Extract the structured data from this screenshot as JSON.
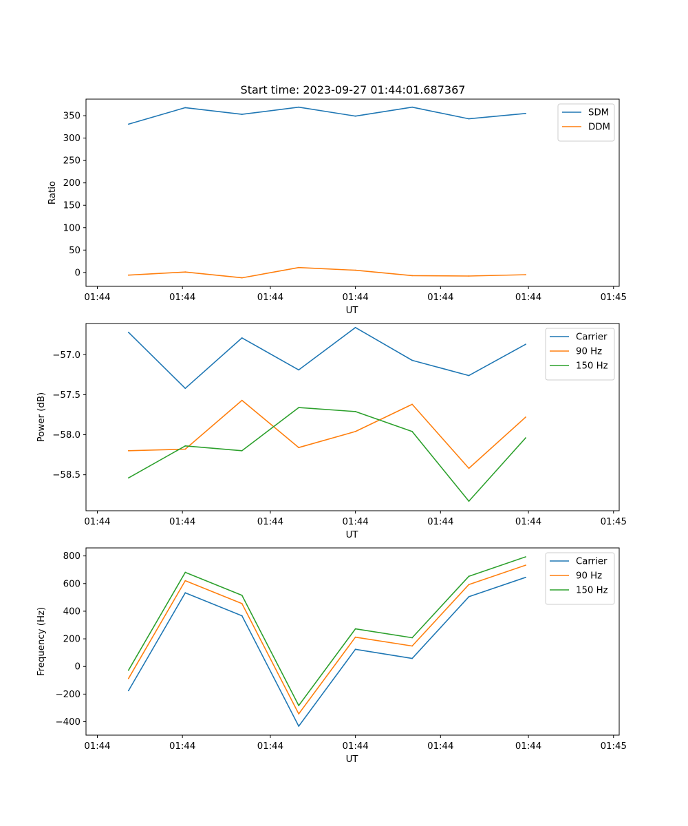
{
  "figure_title": "Start time: 2023-09-27 01:44:01.687367",
  "chart_data": [
    {
      "type": "line",
      "title": "Start time: 2023-09-27 01:44:01.687367",
      "xlabel": "UT",
      "ylabel": "Ratio",
      "x": [
        0,
        1,
        2,
        3,
        4,
        5,
        6,
        7
      ],
      "xlim": [
        -0.75,
        8.65
      ],
      "xticks": [
        -0.55,
        0.95,
        2.5,
        4.0,
        5.5,
        7.05,
        8.55
      ],
      "xtick_labels": [
        "01:44",
        "01:44",
        "01:44",
        "01:44",
        "01:44",
        "01:44",
        "01:45"
      ],
      "ylim": [
        -31,
        387
      ],
      "yticks": [
        0,
        50,
        100,
        150,
        200,
        250,
        300,
        350
      ],
      "ytick_labels": [
        "0",
        "50",
        "100",
        "150",
        "200",
        "250",
        "300",
        "350"
      ],
      "legend": "top-right",
      "series": [
        {
          "name": "SDM",
          "color": "#1f77b4",
          "values": [
            331,
            368,
            353,
            369,
            349,
            369,
            343,
            355
          ]
        },
        {
          "name": "DDM",
          "color": "#ff7f0e",
          "values": [
            -6,
            1,
            -12,
            11,
            5,
            -7,
            -8,
            -5
          ]
        }
      ]
    },
    {
      "type": "line",
      "title": "",
      "xlabel": "UT",
      "ylabel": "Power (dB)",
      "x": [
        0,
        1,
        2,
        3,
        4,
        5,
        6,
        7
      ],
      "xlim": [
        -0.75,
        8.65
      ],
      "xticks": [
        -0.55,
        0.95,
        2.5,
        4.0,
        5.5,
        7.05,
        8.55
      ],
      "xtick_labels": [
        "01:44",
        "01:44",
        "01:44",
        "01:44",
        "01:44",
        "01:44",
        "01:45"
      ],
      "ylim": [
        -58.95,
        -56.61
      ],
      "yticks": [
        -58.5,
        -58.0,
        -57.5,
        -57.0
      ],
      "ytick_labels": [
        "−58.5",
        "−58.0",
        "−57.5",
        "−57.0"
      ],
      "legend": "top-right",
      "series": [
        {
          "name": "Carrier",
          "color": "#1f77b4",
          "values": [
            -56.72,
            -57.42,
            -56.79,
            -57.19,
            -56.66,
            -57.07,
            -57.26,
            -56.87
          ]
        },
        {
          "name": "90 Hz",
          "color": "#ff7f0e",
          "values": [
            -58.2,
            -58.18,
            -57.57,
            -58.16,
            -57.96,
            -57.62,
            -58.42,
            -57.78
          ]
        },
        {
          "name": "150 Hz",
          "color": "#2ca02c",
          "values": [
            -58.54,
            -58.14,
            -58.2,
            -57.66,
            -57.71,
            -57.96,
            -58.83,
            -58.04
          ]
        }
      ]
    },
    {
      "type": "line",
      "title": "",
      "xlabel": "UT",
      "ylabel": "Frequency (Hz)",
      "x": [
        0,
        1,
        2,
        3,
        4,
        5,
        6,
        7
      ],
      "xlim": [
        -0.75,
        8.65
      ],
      "xticks": [
        -0.55,
        0.95,
        2.5,
        4.0,
        5.5,
        7.05,
        8.55
      ],
      "xtick_labels": [
        "01:44",
        "01:44",
        "01:44",
        "01:44",
        "01:44",
        "01:44",
        "01:45"
      ],
      "ylim": [
        -497,
        858
      ],
      "yticks": [
        -400,
        -200,
        0,
        200,
        400,
        600,
        800
      ],
      "ytick_labels": [
        "−400",
        "−200",
        "0",
        "200",
        "400",
        "600",
        "800"
      ],
      "legend": "top-right",
      "series": [
        {
          "name": "Carrier",
          "color": "#1f77b4",
          "values": [
            -175,
            533,
            367,
            -432,
            124,
            58,
            505,
            645
          ]
        },
        {
          "name": "90 Hz",
          "color": "#ff7f0e",
          "values": [
            -87,
            621,
            455,
            -343,
            212,
            148,
            593,
            733
          ]
        },
        {
          "name": "150 Hz",
          "color": "#2ca02c",
          "values": [
            -27,
            681,
            515,
            -283,
            272,
            208,
            653,
            793
          ]
        }
      ]
    }
  ]
}
